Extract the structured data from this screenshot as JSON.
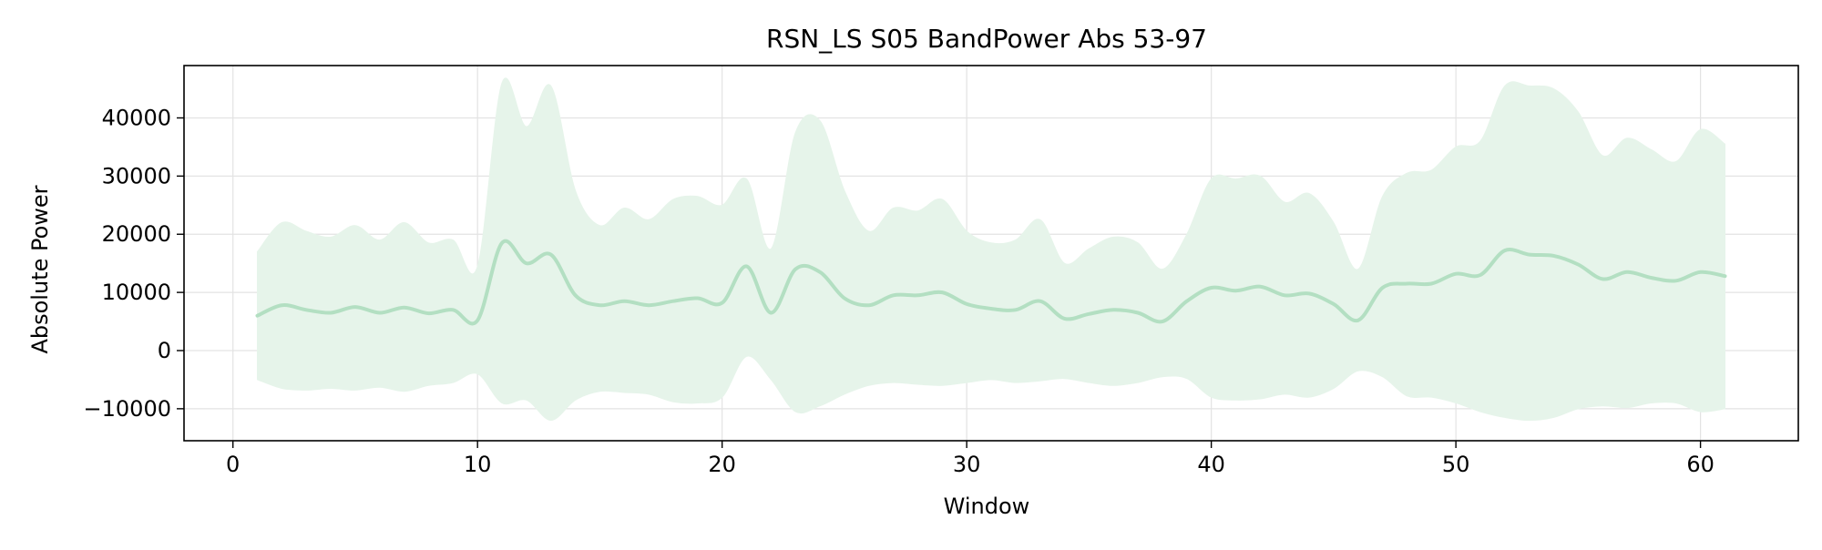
{
  "chart_data": {
    "type": "line",
    "title": "RSN_LS S05 BandPower Abs 53-97",
    "xlabel": "Window",
    "ylabel": "Absolute Power",
    "xlim": [
      -2,
      64
    ],
    "ylim": [
      -15500,
      49000
    ],
    "xticks": [
      0,
      10,
      20,
      30,
      40,
      50,
      60
    ],
    "yticks": [
      -10000,
      0,
      10000,
      20000,
      30000,
      40000
    ],
    "ytick_labels": [
      "−10000",
      "0",
      "10000",
      "20000",
      "30000",
      "40000"
    ],
    "grid": true,
    "legend": "none",
    "line_color": "#b3dfc2",
    "band_color": "#e6f4ea",
    "series": [
      {
        "x": [
          1,
          2,
          3,
          4,
          5,
          6,
          7,
          8,
          9,
          10,
          11,
          12,
          13,
          14,
          15,
          16,
          17,
          18,
          19,
          20,
          21,
          22,
          23,
          24,
          25,
          26,
          27,
          28,
          29,
          30,
          31,
          32,
          33,
          34,
          35,
          36,
          37,
          38,
          39,
          40,
          41,
          42,
          43,
          44,
          45,
          46,
          47,
          48,
          49,
          50,
          51,
          52,
          53,
          54,
          55,
          56,
          57,
          58,
          59,
          60,
          61
        ],
        "y": [
          6000,
          7800,
          7000,
          6500,
          7500,
          6500,
          7400,
          6400,
          7000,
          5200,
          18500,
          15000,
          16500,
          9500,
          7800,
          8500,
          7800,
          8500,
          9000,
          8200,
          14500,
          6500,
          14000,
          13500,
          9000,
          7800,
          9500,
          9500,
          10000,
          8000,
          7200,
          7000,
          8500,
          5500,
          6300,
          7000,
          6500,
          5000,
          8500,
          10800,
          10300,
          11000,
          9500,
          9800,
          8000,
          5200,
          10800,
          11500,
          11500,
          13200,
          13000,
          17200,
          16500,
          16300,
          14800,
          12300,
          13500,
          12500,
          12000,
          13500,
          12800
        ],
        "upper": [
          17000,
          22000,
          20500,
          19500,
          21500,
          19000,
          22000,
          18500,
          19000,
          14500,
          46000,
          38500,
          45500,
          27500,
          21500,
          24500,
          22500,
          26000,
          26500,
          25000,
          29500,
          17500,
          37500,
          39500,
          27500,
          20500,
          24500,
          24000,
          26000,
          20500,
          18500,
          19000,
          22500,
          15000,
          17500,
          19500,
          18500,
          14000,
          20000,
          29500,
          29500,
          30000,
          25500,
          27000,
          22000,
          14000,
          26500,
          30500,
          31000,
          35000,
          36000,
          45500,
          45500,
          45000,
          41000,
          33500,
          36500,
          34500,
          32500,
          38000,
          35500
        ],
        "lower": [
          -5000,
          -6500,
          -6800,
          -6500,
          -6800,
          -6300,
          -7000,
          -6000,
          -5500,
          -4000,
          -9000,
          -8500,
          -12000,
          -8500,
          -7000,
          -7200,
          -7500,
          -8800,
          -9000,
          -8000,
          -1000,
          -5000,
          -10500,
          -9500,
          -7500,
          -6000,
          -5500,
          -5800,
          -6000,
          -5500,
          -5000,
          -5500,
          -5200,
          -4800,
          -5500,
          -6000,
          -5500,
          -4500,
          -4800,
          -8000,
          -8500,
          -8300,
          -7500,
          -8000,
          -6500,
          -3500,
          -4500,
          -7800,
          -8000,
          -9000,
          -10500,
          -11500,
          -12000,
          -11500,
          -10000,
          -9500,
          -9800,
          -9000,
          -9000,
          -10500,
          -10000
        ]
      }
    ]
  }
}
